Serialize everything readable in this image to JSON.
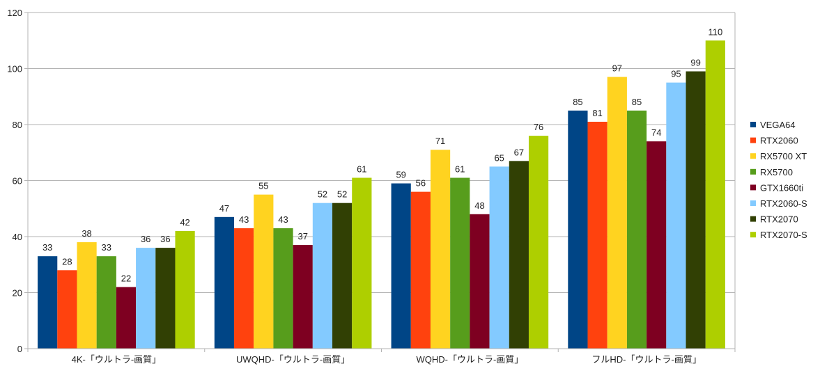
{
  "chart_data": {
    "type": "bar",
    "title": "",
    "xlabel": "",
    "ylabel": "",
    "ylim": [
      0,
      120
    ],
    "yticks": [
      0,
      20,
      40,
      60,
      80,
      100,
      120
    ],
    "grid": true,
    "legend_position": "right",
    "categories": [
      "4K-「ウルトラ-画質」",
      "UWQHD-「ウルトラ-画質」",
      "WQHD-「ウルトラ-画質」",
      "フルHD-「ウルトラ-画質」"
    ],
    "series": [
      {
        "name": "VEGA64",
        "color": "#004586",
        "values": [
          33,
          47,
          59,
          85
        ]
      },
      {
        "name": "RTX2060",
        "color": "#ff420e",
        "values": [
          28,
          43,
          56,
          81
        ]
      },
      {
        "name": "RX5700 XT",
        "color": "#ffd320",
        "values": [
          38,
          55,
          71,
          97
        ]
      },
      {
        "name": "RX5700",
        "color": "#579d1c",
        "values": [
          33,
          43,
          61,
          85
        ]
      },
      {
        "name": "GTX1660ti",
        "color": "#7e0021",
        "values": [
          22,
          37,
          48,
          74
        ]
      },
      {
        "name": "RTX2060-S",
        "color": "#83caff",
        "values": [
          36,
          52,
          65,
          95
        ]
      },
      {
        "name": "RTX2070",
        "color": "#314004",
        "values": [
          36,
          52,
          67,
          99
        ]
      },
      {
        "name": "RTX2070-S",
        "color": "#aecf00",
        "values": [
          42,
          61,
          76,
          110
        ]
      }
    ]
  }
}
